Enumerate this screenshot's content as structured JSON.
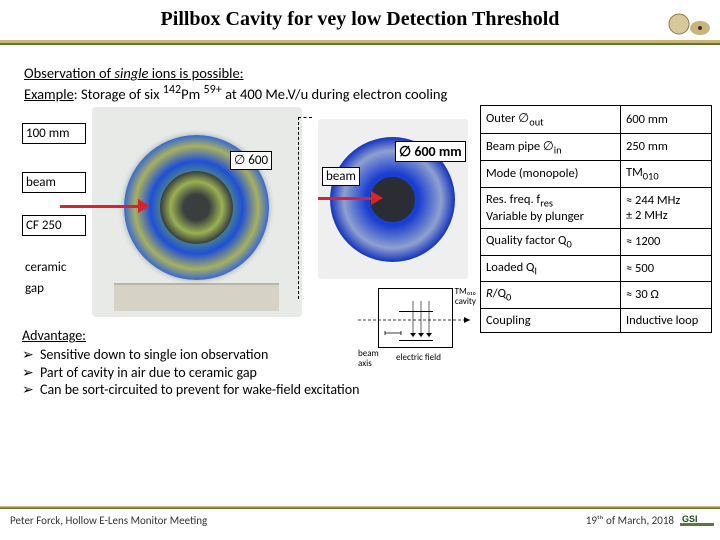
{
  "title": "Pillbox Cavity for vey low Detection Threshold",
  "intro": {
    "line1a": "Observation of ",
    "line1b": "single",
    "line1c": " ions is possible:",
    "line2a": "Example",
    "line2b": ": Storage of six ",
    "isotope": "142",
    "element": "Pm ",
    "charge": "59+",
    "line2c": " at 400 Me.V/u  during electron cooling"
  },
  "labels": {
    "l100": "100 mm",
    "beam": "beam",
    "cf250": "CF 250",
    "ceramic": "ceramic",
    "gap": "gap"
  },
  "dim600": "∅ 600",
  "dim600mm": "∅ 600 mm",
  "beam2": "beam",
  "spec": {
    "rows": [
      [
        "Outer ∅<sub>out</sub>",
        "600 mm"
      ],
      [
        "Beam pipe ∅<sub>in</sub>",
        "250 mm"
      ],
      [
        "Mode (monopole)",
        "TM<sub>010</sub>"
      ],
      [
        "Res. freq. f<sub>res</sub><br>Variable by plunger",
        "≈ 244 MHz<br>± 2 MHz"
      ],
      [
        "Quality factor Q<sub>0</sub>",
        "≈ 1200"
      ],
      [
        "Loaded Q<sub>l</sub>",
        "≈    500"
      ],
      [
        "<i>R</i>/Q<sub>0</sub>",
        "≈ 30 Ω"
      ],
      [
        "Coupling",
        "Inductive loop"
      ]
    ]
  },
  "schematic": {
    "tm": "TM₀₁₀",
    "cavity": "cavity",
    "beam": "beam",
    "axis": "axis",
    "efield": "electric field"
  },
  "advantage": {
    "title": "Advantage:",
    "items": [
      "Sensitive down to single ion observation",
      "Part of cavity in air due to ceramic gap",
      "Can be sort-circuited to prevent for wake-field excitation"
    ]
  },
  "footer": {
    "left": "Peter Forck, Hollow E-Lens Monitor Meeting",
    "right": "19ᵗʰ of March, 2018"
  },
  "colors": {
    "accent_green": "#5a7a3a",
    "accent_tan": "#c9b57a",
    "red": "#d8232a"
  }
}
